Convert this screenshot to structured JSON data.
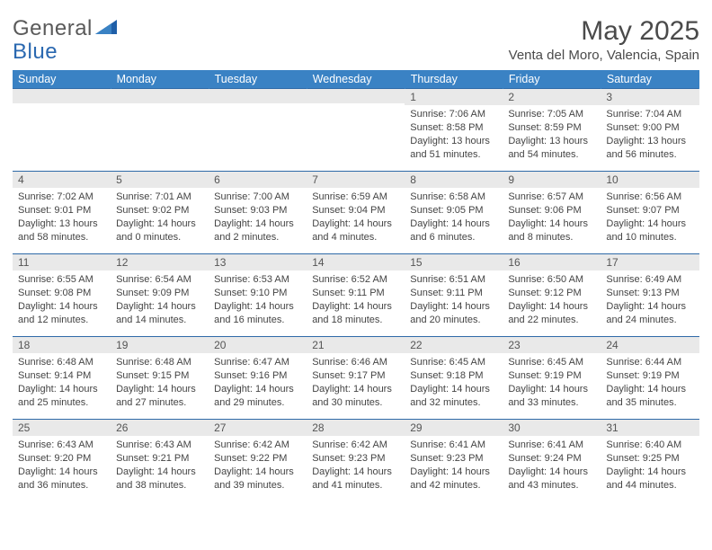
{
  "logo": {
    "general": "General",
    "blue": "Blue"
  },
  "title": "May 2025",
  "location": "Venta del Moro, Valencia, Spain",
  "colors": {
    "header_bg": "#3a82c4",
    "header_text": "#ffffff",
    "band_bg": "#e9e9e9",
    "border": "#2f6aa8",
    "logo_gray": "#5a5a5a",
    "logo_blue": "#2a68b0",
    "text": "#444444"
  },
  "day_headers": [
    "Sunday",
    "Monday",
    "Tuesday",
    "Wednesday",
    "Thursday",
    "Friday",
    "Saturday"
  ],
  "weeks": [
    [
      {
        "n": "",
        "sunrise": "",
        "sunset": "",
        "daylight1": "",
        "daylight2": ""
      },
      {
        "n": "",
        "sunrise": "",
        "sunset": "",
        "daylight1": "",
        "daylight2": ""
      },
      {
        "n": "",
        "sunrise": "",
        "sunset": "",
        "daylight1": "",
        "daylight2": ""
      },
      {
        "n": "",
        "sunrise": "",
        "sunset": "",
        "daylight1": "",
        "daylight2": ""
      },
      {
        "n": "1",
        "sunrise": "Sunrise: 7:06 AM",
        "sunset": "Sunset: 8:58 PM",
        "daylight1": "Daylight: 13 hours",
        "daylight2": "and 51 minutes."
      },
      {
        "n": "2",
        "sunrise": "Sunrise: 7:05 AM",
        "sunset": "Sunset: 8:59 PM",
        "daylight1": "Daylight: 13 hours",
        "daylight2": "and 54 minutes."
      },
      {
        "n": "3",
        "sunrise": "Sunrise: 7:04 AM",
        "sunset": "Sunset: 9:00 PM",
        "daylight1": "Daylight: 13 hours",
        "daylight2": "and 56 minutes."
      }
    ],
    [
      {
        "n": "4",
        "sunrise": "Sunrise: 7:02 AM",
        "sunset": "Sunset: 9:01 PM",
        "daylight1": "Daylight: 13 hours",
        "daylight2": "and 58 minutes."
      },
      {
        "n": "5",
        "sunrise": "Sunrise: 7:01 AM",
        "sunset": "Sunset: 9:02 PM",
        "daylight1": "Daylight: 14 hours",
        "daylight2": "and 0 minutes."
      },
      {
        "n": "6",
        "sunrise": "Sunrise: 7:00 AM",
        "sunset": "Sunset: 9:03 PM",
        "daylight1": "Daylight: 14 hours",
        "daylight2": "and 2 minutes."
      },
      {
        "n": "7",
        "sunrise": "Sunrise: 6:59 AM",
        "sunset": "Sunset: 9:04 PM",
        "daylight1": "Daylight: 14 hours",
        "daylight2": "and 4 minutes."
      },
      {
        "n": "8",
        "sunrise": "Sunrise: 6:58 AM",
        "sunset": "Sunset: 9:05 PM",
        "daylight1": "Daylight: 14 hours",
        "daylight2": "and 6 minutes."
      },
      {
        "n": "9",
        "sunrise": "Sunrise: 6:57 AM",
        "sunset": "Sunset: 9:06 PM",
        "daylight1": "Daylight: 14 hours",
        "daylight2": "and 8 minutes."
      },
      {
        "n": "10",
        "sunrise": "Sunrise: 6:56 AM",
        "sunset": "Sunset: 9:07 PM",
        "daylight1": "Daylight: 14 hours",
        "daylight2": "and 10 minutes."
      }
    ],
    [
      {
        "n": "11",
        "sunrise": "Sunrise: 6:55 AM",
        "sunset": "Sunset: 9:08 PM",
        "daylight1": "Daylight: 14 hours",
        "daylight2": "and 12 minutes."
      },
      {
        "n": "12",
        "sunrise": "Sunrise: 6:54 AM",
        "sunset": "Sunset: 9:09 PM",
        "daylight1": "Daylight: 14 hours",
        "daylight2": "and 14 minutes."
      },
      {
        "n": "13",
        "sunrise": "Sunrise: 6:53 AM",
        "sunset": "Sunset: 9:10 PM",
        "daylight1": "Daylight: 14 hours",
        "daylight2": "and 16 minutes."
      },
      {
        "n": "14",
        "sunrise": "Sunrise: 6:52 AM",
        "sunset": "Sunset: 9:11 PM",
        "daylight1": "Daylight: 14 hours",
        "daylight2": "and 18 minutes."
      },
      {
        "n": "15",
        "sunrise": "Sunrise: 6:51 AM",
        "sunset": "Sunset: 9:11 PM",
        "daylight1": "Daylight: 14 hours",
        "daylight2": "and 20 minutes."
      },
      {
        "n": "16",
        "sunrise": "Sunrise: 6:50 AM",
        "sunset": "Sunset: 9:12 PM",
        "daylight1": "Daylight: 14 hours",
        "daylight2": "and 22 minutes."
      },
      {
        "n": "17",
        "sunrise": "Sunrise: 6:49 AM",
        "sunset": "Sunset: 9:13 PM",
        "daylight1": "Daylight: 14 hours",
        "daylight2": "and 24 minutes."
      }
    ],
    [
      {
        "n": "18",
        "sunrise": "Sunrise: 6:48 AM",
        "sunset": "Sunset: 9:14 PM",
        "daylight1": "Daylight: 14 hours",
        "daylight2": "and 25 minutes."
      },
      {
        "n": "19",
        "sunrise": "Sunrise: 6:48 AM",
        "sunset": "Sunset: 9:15 PM",
        "daylight1": "Daylight: 14 hours",
        "daylight2": "and 27 minutes."
      },
      {
        "n": "20",
        "sunrise": "Sunrise: 6:47 AM",
        "sunset": "Sunset: 9:16 PM",
        "daylight1": "Daylight: 14 hours",
        "daylight2": "and 29 minutes."
      },
      {
        "n": "21",
        "sunrise": "Sunrise: 6:46 AM",
        "sunset": "Sunset: 9:17 PM",
        "daylight1": "Daylight: 14 hours",
        "daylight2": "and 30 minutes."
      },
      {
        "n": "22",
        "sunrise": "Sunrise: 6:45 AM",
        "sunset": "Sunset: 9:18 PM",
        "daylight1": "Daylight: 14 hours",
        "daylight2": "and 32 minutes."
      },
      {
        "n": "23",
        "sunrise": "Sunrise: 6:45 AM",
        "sunset": "Sunset: 9:19 PM",
        "daylight1": "Daylight: 14 hours",
        "daylight2": "and 33 minutes."
      },
      {
        "n": "24",
        "sunrise": "Sunrise: 6:44 AM",
        "sunset": "Sunset: 9:19 PM",
        "daylight1": "Daylight: 14 hours",
        "daylight2": "and 35 minutes."
      }
    ],
    [
      {
        "n": "25",
        "sunrise": "Sunrise: 6:43 AM",
        "sunset": "Sunset: 9:20 PM",
        "daylight1": "Daylight: 14 hours",
        "daylight2": "and 36 minutes."
      },
      {
        "n": "26",
        "sunrise": "Sunrise: 6:43 AM",
        "sunset": "Sunset: 9:21 PM",
        "daylight1": "Daylight: 14 hours",
        "daylight2": "and 38 minutes."
      },
      {
        "n": "27",
        "sunrise": "Sunrise: 6:42 AM",
        "sunset": "Sunset: 9:22 PM",
        "daylight1": "Daylight: 14 hours",
        "daylight2": "and 39 minutes."
      },
      {
        "n": "28",
        "sunrise": "Sunrise: 6:42 AM",
        "sunset": "Sunset: 9:23 PM",
        "daylight1": "Daylight: 14 hours",
        "daylight2": "and 41 minutes."
      },
      {
        "n": "29",
        "sunrise": "Sunrise: 6:41 AM",
        "sunset": "Sunset: 9:23 PM",
        "daylight1": "Daylight: 14 hours",
        "daylight2": "and 42 minutes."
      },
      {
        "n": "30",
        "sunrise": "Sunrise: 6:41 AM",
        "sunset": "Sunset: 9:24 PM",
        "daylight1": "Daylight: 14 hours",
        "daylight2": "and 43 minutes."
      },
      {
        "n": "31",
        "sunrise": "Sunrise: 6:40 AM",
        "sunset": "Sunset: 9:25 PM",
        "daylight1": "Daylight: 14 hours",
        "daylight2": "and 44 minutes."
      }
    ]
  ]
}
